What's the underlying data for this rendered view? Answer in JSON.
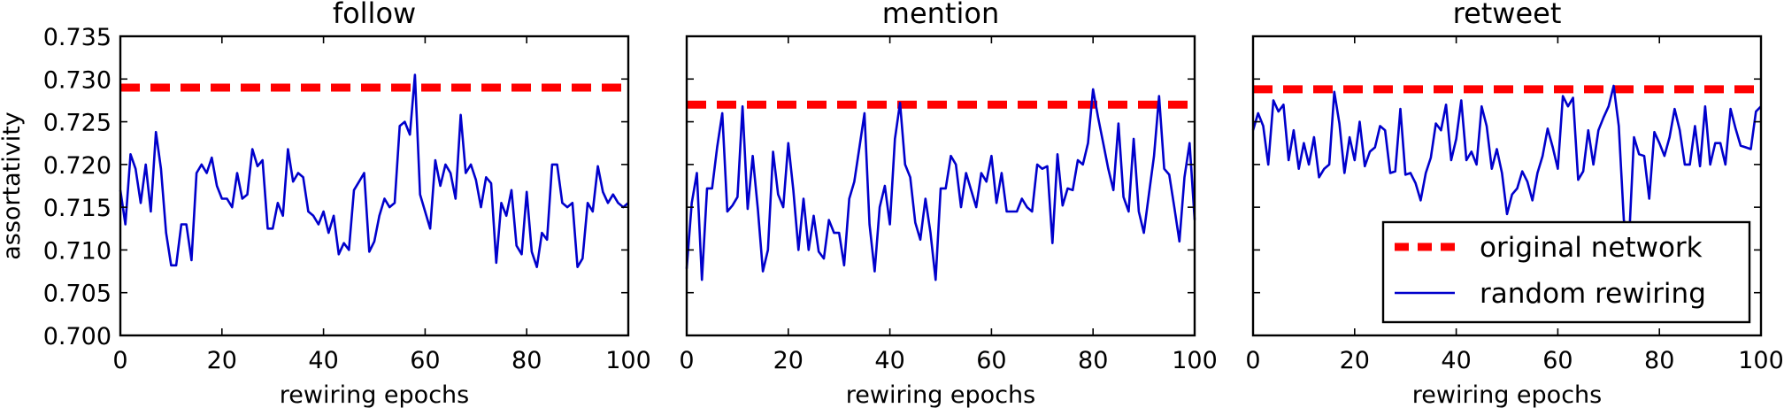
{
  "chart_data": [
    {
      "type": "line",
      "title": "follow",
      "xlabel": "rewiring epochs",
      "ylabel": "assortativity",
      "xlim": [
        0,
        100
      ],
      "ylim": [
        0.7,
        0.735
      ],
      "xticks": [
        "0",
        "20",
        "40",
        "60",
        "80",
        "100"
      ],
      "yticks": [
        "0.700",
        "0.705",
        "0.710",
        "0.715",
        "0.720",
        "0.725",
        "0.730",
        "0.735"
      ],
      "grid": false,
      "series": [
        {
          "name": "original network",
          "style": "dashed",
          "color": "#ff0000",
          "y_constant": 0.729
        },
        {
          "name": "random rewiring",
          "style": "solid",
          "color": "#0000cc",
          "x": [
            0,
            1,
            2,
            3,
            4,
            5,
            6,
            7,
            8,
            9,
            10,
            11,
            12,
            13,
            14,
            15,
            16,
            17,
            18,
            19,
            20,
            21,
            22,
            23,
            24,
            25,
            26,
            27,
            28,
            29,
            30,
            31,
            32,
            33,
            34,
            35,
            36,
            37,
            38,
            39,
            40,
            41,
            42,
            43,
            44,
            45,
            46,
            47,
            48,
            49,
            50,
            51,
            52,
            53,
            54,
            55,
            56,
            57,
            58,
            59,
            60,
            61,
            62,
            63,
            64,
            65,
            66,
            67,
            68,
            69,
            70,
            71,
            72,
            73,
            74,
            75,
            76,
            77,
            78,
            79,
            80,
            81,
            82,
            83,
            84,
            85,
            86,
            87,
            88,
            89,
            90,
            91,
            92,
            93,
            94,
            95,
            96,
            97,
            98,
            99,
            100
          ],
          "values": [
            0.717,
            0.713,
            0.7212,
            0.7195,
            0.7155,
            0.72,
            0.7145,
            0.7238,
            0.7195,
            0.712,
            0.7082,
            0.7082,
            0.713,
            0.713,
            0.7088,
            0.719,
            0.72,
            0.719,
            0.7208,
            0.7175,
            0.716,
            0.716,
            0.715,
            0.719,
            0.716,
            0.7165,
            0.7218,
            0.7198,
            0.7205,
            0.7125,
            0.7125,
            0.7155,
            0.714,
            0.7218,
            0.718,
            0.719,
            0.7185,
            0.7145,
            0.714,
            0.713,
            0.7145,
            0.712,
            0.714,
            0.7095,
            0.7108,
            0.71,
            0.717,
            0.718,
            0.719,
            0.7098,
            0.711,
            0.714,
            0.716,
            0.715,
            0.7155,
            0.7245,
            0.725,
            0.7235,
            0.7305,
            0.7165,
            0.7145,
            0.7125,
            0.7205,
            0.7175,
            0.72,
            0.719,
            0.716,
            0.7258,
            0.719,
            0.72,
            0.7182,
            0.715,
            0.7185,
            0.7178,
            0.7085,
            0.7155,
            0.714,
            0.717,
            0.7105,
            0.7095,
            0.7168,
            0.7098,
            0.708,
            0.712,
            0.7112,
            0.72,
            0.72,
            0.7155,
            0.715,
            0.7155,
            0.708,
            0.709,
            0.7155,
            0.7145,
            0.7198,
            0.7168,
            0.7155,
            0.7165,
            0.7155,
            0.715,
            0.7155
          ]
        }
      ]
    },
    {
      "type": "line",
      "title": "mention",
      "xlabel": "rewiring epochs",
      "xlim": [
        0,
        100
      ],
      "ylim": [
        0.7,
        0.735
      ],
      "xticks": [
        "0",
        "20",
        "40",
        "60",
        "80",
        "100"
      ],
      "grid": false,
      "series": [
        {
          "name": "original network",
          "style": "dashed",
          "color": "#ff0000",
          "y_constant": 0.727
        },
        {
          "name": "random rewiring",
          "style": "solid",
          "color": "#0000cc",
          "x": [
            0,
            1,
            2,
            3,
            4,
            5,
            6,
            7,
            8,
            9,
            10,
            11,
            12,
            13,
            14,
            15,
            16,
            17,
            18,
            19,
            20,
            21,
            22,
            23,
            24,
            25,
            26,
            27,
            28,
            29,
            30,
            31,
            32,
            33,
            34,
            35,
            36,
            37,
            38,
            39,
            40,
            41,
            42,
            43,
            44,
            45,
            46,
            47,
            48,
            49,
            50,
            51,
            52,
            53,
            54,
            55,
            56,
            57,
            58,
            59,
            60,
            61,
            62,
            63,
            64,
            65,
            66,
            67,
            68,
            69,
            70,
            71,
            72,
            73,
            74,
            75,
            76,
            77,
            78,
            79,
            80,
            81,
            82,
            83,
            84,
            85,
            86,
            87,
            88,
            89,
            90,
            91,
            92,
            93,
            94,
            95,
            96,
            97,
            98,
            99,
            100
          ],
          "values": [
            0.7078,
            0.7155,
            0.719,
            0.7065,
            0.7172,
            0.7172,
            0.722,
            0.726,
            0.7145,
            0.7152,
            0.7162,
            0.7268,
            0.7148,
            0.721,
            0.7148,
            0.7075,
            0.71,
            0.7215,
            0.7165,
            0.715,
            0.7225,
            0.717,
            0.71,
            0.716,
            0.71,
            0.714,
            0.7098,
            0.709,
            0.7135,
            0.712,
            0.712,
            0.7082,
            0.716,
            0.718,
            0.722,
            0.726,
            0.713,
            0.7075,
            0.715,
            0.7175,
            0.713,
            0.723,
            0.7272,
            0.72,
            0.7185,
            0.7132,
            0.7112,
            0.716,
            0.712,
            0.7065,
            0.7172,
            0.7172,
            0.721,
            0.72,
            0.715,
            0.719,
            0.717,
            0.715,
            0.719,
            0.718,
            0.721,
            0.7155,
            0.719,
            0.7145,
            0.7145,
            0.7145,
            0.716,
            0.715,
            0.7145,
            0.72,
            0.7195,
            0.7198,
            0.7108,
            0.7212,
            0.7152,
            0.7172,
            0.717,
            0.7205,
            0.72,
            0.7225,
            0.7288,
            0.7255,
            0.7225,
            0.7195,
            0.717,
            0.7248,
            0.7162,
            0.7145,
            0.723,
            0.7145,
            0.712,
            0.7165,
            0.721,
            0.728,
            0.7195,
            0.7188,
            0.715,
            0.711,
            0.7185,
            0.7225,
            0.7135
          ]
        }
      ]
    },
    {
      "type": "line",
      "title": "retweet",
      "xlabel": "rewiring epochs",
      "xlim": [
        0,
        100
      ],
      "ylim": [
        0.7,
        0.735
      ],
      "xticks": [
        "0",
        "20",
        "40",
        "60",
        "80",
        "100"
      ],
      "grid": false,
      "legend": {
        "position": "lower-right",
        "entries": [
          "original network",
          "random rewiring"
        ]
      },
      "series": [
        {
          "name": "original network",
          "style": "dashed",
          "color": "#ff0000",
          "y_constant": 0.7288
        },
        {
          "name": "random rewiring",
          "style": "solid",
          "color": "#0000cc",
          "x": [
            0,
            1,
            2,
            3,
            4,
            5,
            6,
            7,
            8,
            9,
            10,
            11,
            12,
            13,
            14,
            15,
            16,
            17,
            18,
            19,
            20,
            21,
            22,
            23,
            24,
            25,
            26,
            27,
            28,
            29,
            30,
            31,
            32,
            33,
            34,
            35,
            36,
            37,
            38,
            39,
            40,
            41,
            42,
            43,
            44,
            45,
            46,
            47,
            48,
            49,
            50,
            51,
            52,
            53,
            54,
            55,
            56,
            57,
            58,
            59,
            60,
            61,
            62,
            63,
            64,
            65,
            66,
            67,
            68,
            69,
            70,
            71,
            72,
            73,
            74,
            75,
            76,
            77,
            78,
            79,
            80,
            81,
            82,
            83,
            84,
            85,
            86,
            87,
            88,
            89,
            90,
            91,
            92,
            93,
            94,
            95,
            96,
            97,
            98,
            99,
            100
          ],
          "values": [
            0.724,
            0.726,
            0.7245,
            0.72,
            0.7275,
            0.7262,
            0.727,
            0.7205,
            0.724,
            0.7195,
            0.7225,
            0.72,
            0.7232,
            0.7185,
            0.7195,
            0.72,
            0.7285,
            0.7248,
            0.719,
            0.7232,
            0.7205,
            0.725,
            0.7198,
            0.7215,
            0.722,
            0.7245,
            0.724,
            0.719,
            0.7192,
            0.7265,
            0.7188,
            0.719,
            0.7178,
            0.7158,
            0.719,
            0.7208,
            0.7248,
            0.724,
            0.727,
            0.7205,
            0.723,
            0.7275,
            0.7205,
            0.7215,
            0.72,
            0.7268,
            0.7245,
            0.7195,
            0.7218,
            0.719,
            0.7142,
            0.7165,
            0.7172,
            0.7192,
            0.718,
            0.7158,
            0.719,
            0.721,
            0.7242,
            0.722,
            0.7195,
            0.728,
            0.7268,
            0.7278,
            0.7182,
            0.7192,
            0.724,
            0.72,
            0.724,
            0.7255,
            0.7268,
            0.7292,
            0.7245,
            0.7135,
            0.711,
            0.7232,
            0.7212,
            0.721,
            0.716,
            0.7238,
            0.7225,
            0.721,
            0.7232,
            0.7265,
            0.724,
            0.72,
            0.72,
            0.7245,
            0.7198,
            0.7268,
            0.72,
            0.7225,
            0.7225,
            0.72,
            0.7265,
            0.7242,
            0.7222,
            0.722,
            0.7218,
            0.7262,
            0.7268
          ]
        }
      ]
    }
  ],
  "colors": {
    "original": "#ff0000",
    "random": "#0000cc",
    "axes": "#000000"
  }
}
